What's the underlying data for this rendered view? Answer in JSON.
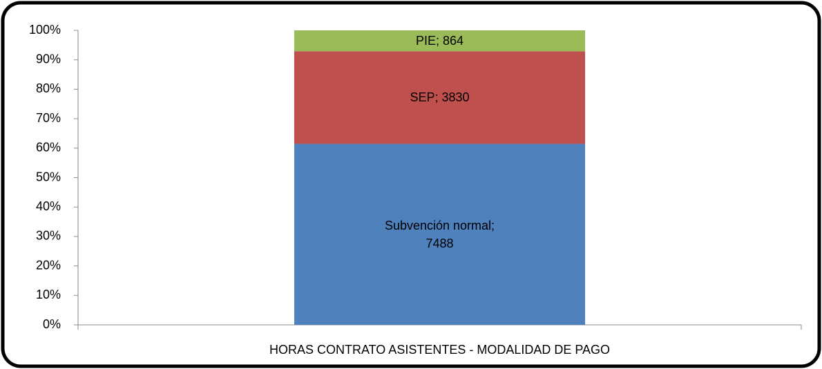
{
  "chart_data": {
    "type": "bar",
    "stacking": "percent",
    "categories": [
      "HORAS CONTRATO ASISTENTES - MODALIDAD DE PAGO"
    ],
    "series": [
      {
        "name": "Subvención normal",
        "color": "#4f81bd",
        "values": [
          7488
        ],
        "value_labels": [
          "Subvención normal; 7488"
        ]
      },
      {
        "name": "SEP",
        "color": "#c0504d",
        "values": [
          3830
        ],
        "value_labels": [
          "SEP; 3830"
        ]
      },
      {
        "name": "PIE",
        "color": "#9bbb59",
        "values": [
          864
        ],
        "value_labels": [
          "PIE; 864"
        ]
      }
    ],
    "ylim": [
      0,
      100
    ],
    "yticks": [
      {
        "value": 0,
        "label": "0%"
      },
      {
        "value": 10,
        "label": "10%"
      },
      {
        "value": 20,
        "label": "20%"
      },
      {
        "value": 30,
        "label": "30%"
      },
      {
        "value": 40,
        "label": "40%"
      },
      {
        "value": 50,
        "label": "50%"
      },
      {
        "value": 60,
        "label": "60%"
      },
      {
        "value": 70,
        "label": "70%"
      },
      {
        "value": 80,
        "label": "80%"
      },
      {
        "value": 90,
        "label": "90%"
      },
      {
        "value": 100,
        "label": "100%"
      }
    ],
    "grid": false
  }
}
